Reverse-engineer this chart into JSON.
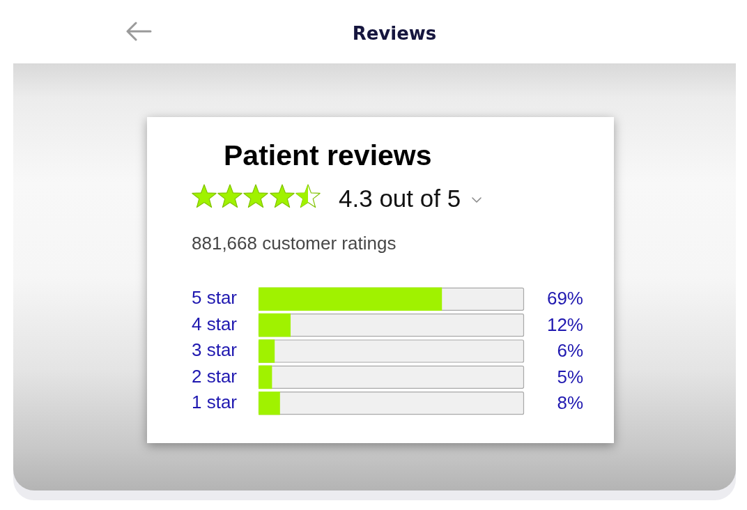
{
  "chart_data": {
    "type": "bar",
    "orientation": "horizontal",
    "title": "Patient reviews",
    "subtitle": "4.3 out of 5",
    "annotations": [
      "Reviews",
      "881,668 customer ratings"
    ],
    "categories": [
      "5 star",
      "4 star",
      "3 star",
      "2 star",
      "1 star"
    ],
    "values": [
      69,
      12,
      6,
      5,
      8
    ],
    "value_labels": [
      "69%",
      "12%",
      "6%",
      "5%",
      "8%"
    ],
    "color": "#a0f200",
    "xlim": [
      0,
      100
    ],
    "tick_labels": "y"
  }
}
